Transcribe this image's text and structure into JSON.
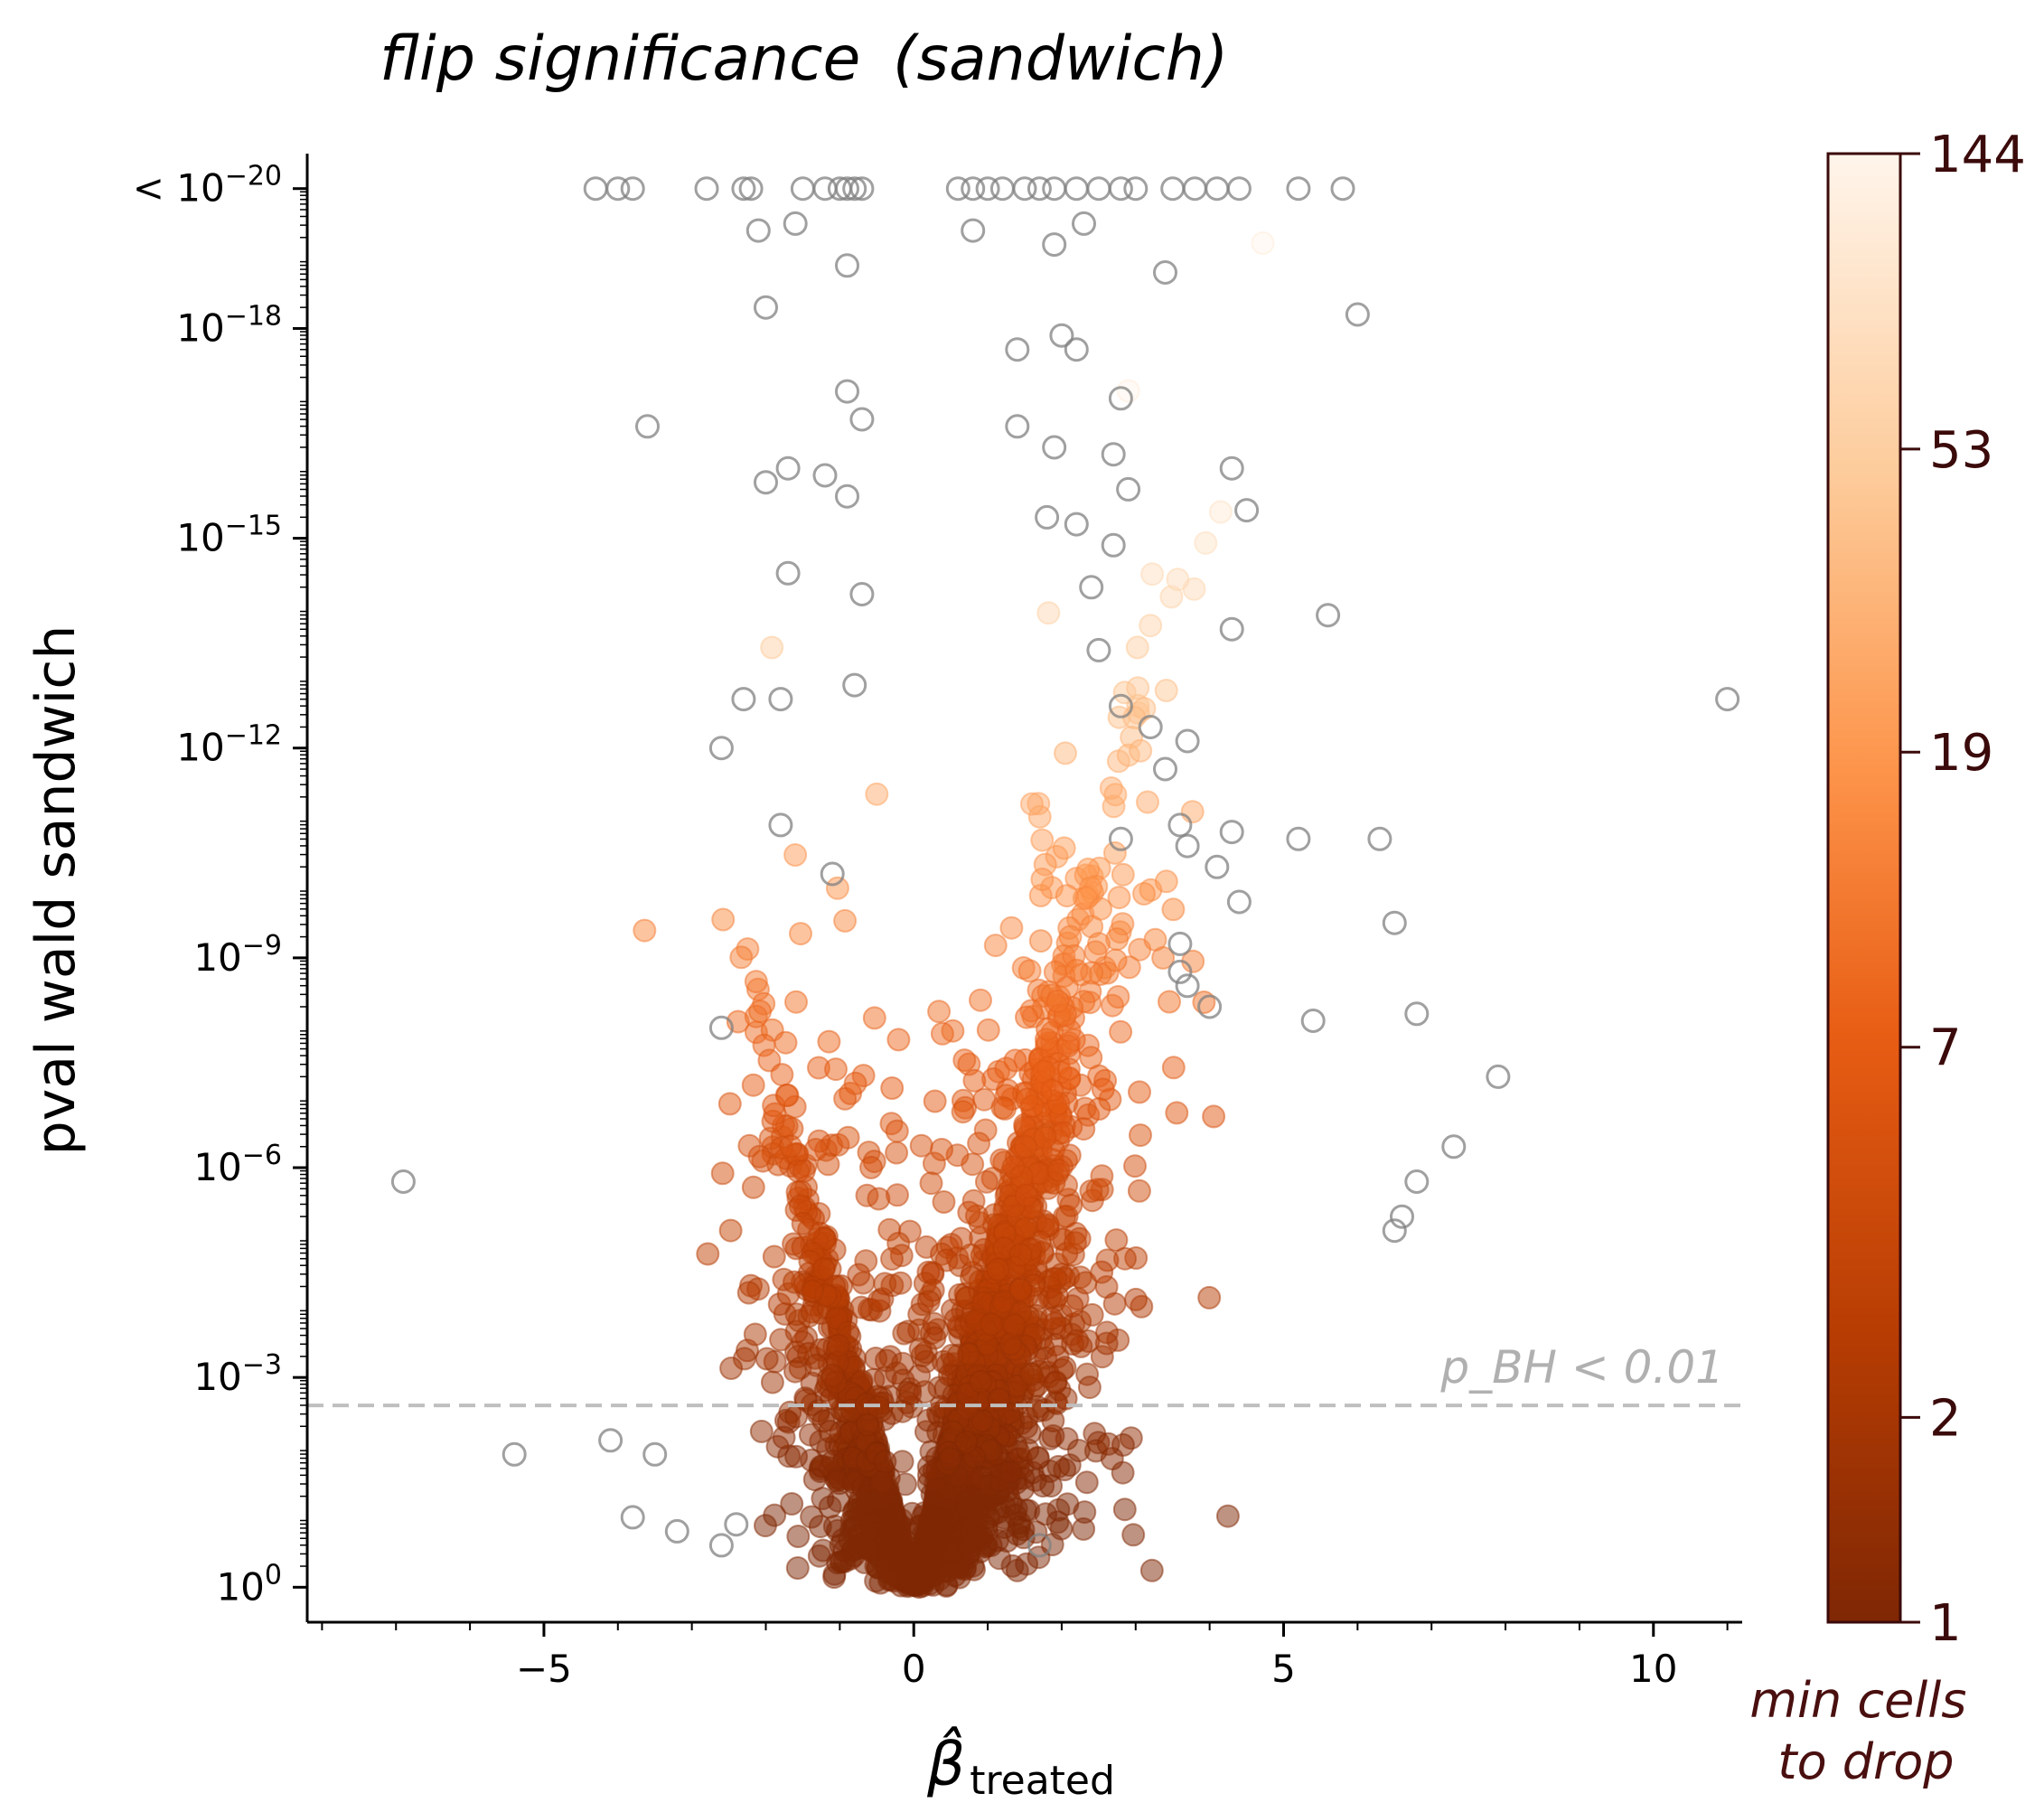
{
  "chart_data": {
    "type": "scatter",
    "title_main": "flip significance",
    "title_paren": "(sandwich)",
    "xlabel_symbol": "β̂",
    "xlabel_sub": "treated",
    "ylabel": "pval wald sandwich",
    "x_axis": {
      "range": [
        -8.2,
        11.2
      ],
      "ticks": [
        -5,
        0,
        5,
        10
      ],
      "tick_labels": [
        "−5",
        "0",
        "5",
        "10"
      ]
    },
    "y_axis": {
      "scale": "log",
      "range_neglog10": [
        -0.5,
        20.5
      ],
      "ticks_neglog10": [
        0,
        3,
        6,
        9,
        12,
        15,
        18,
        20
      ],
      "tick_labels": [
        "10^0",
        "10^−3",
        "10^−6",
        "10^−9",
        "10^−12",
        "10^−15",
        "10^−18",
        "< 10^−20"
      ]
    },
    "threshold": {
      "label": "p_BH < 0.01",
      "neglog10_p": 2.6
    },
    "colorbar": {
      "label_line1": "min cells",
      "label_line2": "to drop",
      "scale": "log",
      "ticks": [
        "144",
        "53",
        "19",
        "7",
        "2",
        "1"
      ],
      "tick_values": [
        144,
        53,
        19,
        7,
        2,
        1
      ],
      "colors": [
        "#fff5eb",
        "#fdd0a2",
        "#fd8d3c",
        "#d94801",
        "#7f2704"
      ]
    },
    "non_flipping_marker_color": "#808080",
    "outlier_points_neglog10": [
      [
        -4.3,
        20
      ],
      [
        -4.0,
        20
      ],
      [
        -3.8,
        20
      ],
      [
        -2.8,
        20
      ],
      [
        -2.3,
        20
      ],
      [
        -2.2,
        20
      ],
      [
        -1.5,
        20
      ],
      [
        -1.2,
        20
      ],
      [
        -1.0,
        20
      ],
      [
        -0.9,
        20
      ],
      [
        -0.8,
        20
      ],
      [
        -0.7,
        20
      ],
      [
        0.6,
        20
      ],
      [
        0.8,
        20
      ],
      [
        1.0,
        20
      ],
      [
        1.2,
        20
      ],
      [
        1.5,
        20
      ],
      [
        1.7,
        20
      ],
      [
        1.9,
        20
      ],
      [
        2.2,
        20
      ],
      [
        2.5,
        20
      ],
      [
        2.8,
        20
      ],
      [
        3.0,
        20
      ],
      [
        3.5,
        20
      ],
      [
        3.8,
        20
      ],
      [
        4.1,
        20
      ],
      [
        4.4,
        20
      ],
      [
        5.2,
        20
      ],
      [
        5.8,
        20
      ],
      [
        -2.1,
        19.4
      ],
      [
        -1.6,
        19.5
      ],
      [
        -0.9,
        18.9
      ],
      [
        0.8,
        19.4
      ],
      [
        1.9,
        19.2
      ],
      [
        2.3,
        19.5
      ],
      [
        3.4,
        18.8
      ],
      [
        -2.0,
        18.3
      ],
      [
        6.0,
        18.2
      ],
      [
        2.0,
        17.9
      ],
      [
        1.4,
        17.7
      ],
      [
        2.2,
        17.7
      ],
      [
        -0.9,
        17.1
      ],
      [
        2.8,
        17.0
      ],
      [
        -3.6,
        16.6
      ],
      [
        -0.7,
        16.7
      ],
      [
        1.4,
        16.6
      ],
      [
        1.9,
        16.3
      ],
      [
        2.7,
        16.2
      ],
      [
        4.3,
        16.0
      ],
      [
        -2.0,
        15.8
      ],
      [
        -1.7,
        16.0
      ],
      [
        -1.2,
        15.9
      ],
      [
        -0.9,
        15.6
      ],
      [
        2.9,
        15.7
      ],
      [
        1.8,
        15.3
      ],
      [
        2.2,
        15.2
      ],
      [
        4.5,
        15.4
      ],
      [
        2.7,
        14.9
      ],
      [
        -1.7,
        14.5
      ],
      [
        -0.7,
        14.2
      ],
      [
        2.4,
        14.3
      ],
      [
        4.3,
        13.7
      ],
      [
        5.6,
        13.9
      ],
      [
        2.5,
        13.4
      ],
      [
        -1.8,
        12.7
      ],
      [
        -2.3,
        12.7
      ],
      [
        -0.8,
        12.9
      ],
      [
        2.8,
        12.6
      ],
      [
        11.0,
        12.7
      ],
      [
        3.2,
        12.3
      ],
      [
        3.7,
        12.1
      ],
      [
        -2.6,
        12.0
      ],
      [
        3.4,
        11.7
      ],
      [
        -1.8,
        10.9
      ],
      [
        3.6,
        10.9
      ],
      [
        4.3,
        10.8
      ],
      [
        5.2,
        10.7
      ],
      [
        6.3,
        10.7
      ],
      [
        2.8,
        10.7
      ],
      [
        3.7,
        10.6
      ],
      [
        4.1,
        10.3
      ],
      [
        -1.1,
        10.2
      ],
      [
        4.4,
        9.8
      ],
      [
        6.5,
        9.5
      ],
      [
        3.6,
        9.2
      ],
      [
        3.6,
        8.8
      ],
      [
        3.7,
        8.6
      ],
      [
        4.0,
        8.3
      ],
      [
        5.4,
        8.1
      ],
      [
        6.8,
        8.2
      ],
      [
        -2.6,
        8.0
      ],
      [
        7.9,
        7.3
      ],
      [
        7.3,
        6.3
      ],
      [
        -6.9,
        5.8
      ],
      [
        6.8,
        5.8
      ],
      [
        6.6,
        5.3
      ],
      [
        6.5,
        5.1
      ],
      [
        -5.4,
        1.9
      ],
      [
        -4.1,
        2.1
      ],
      [
        -3.8,
        1.0
      ],
      [
        -3.2,
        0.8
      ],
      [
        -2.6,
        0.6
      ],
      [
        1.7,
        0.6
      ],
      [
        -3.5,
        1.9
      ],
      [
        -2.4,
        0.9
      ]
    ]
  }
}
